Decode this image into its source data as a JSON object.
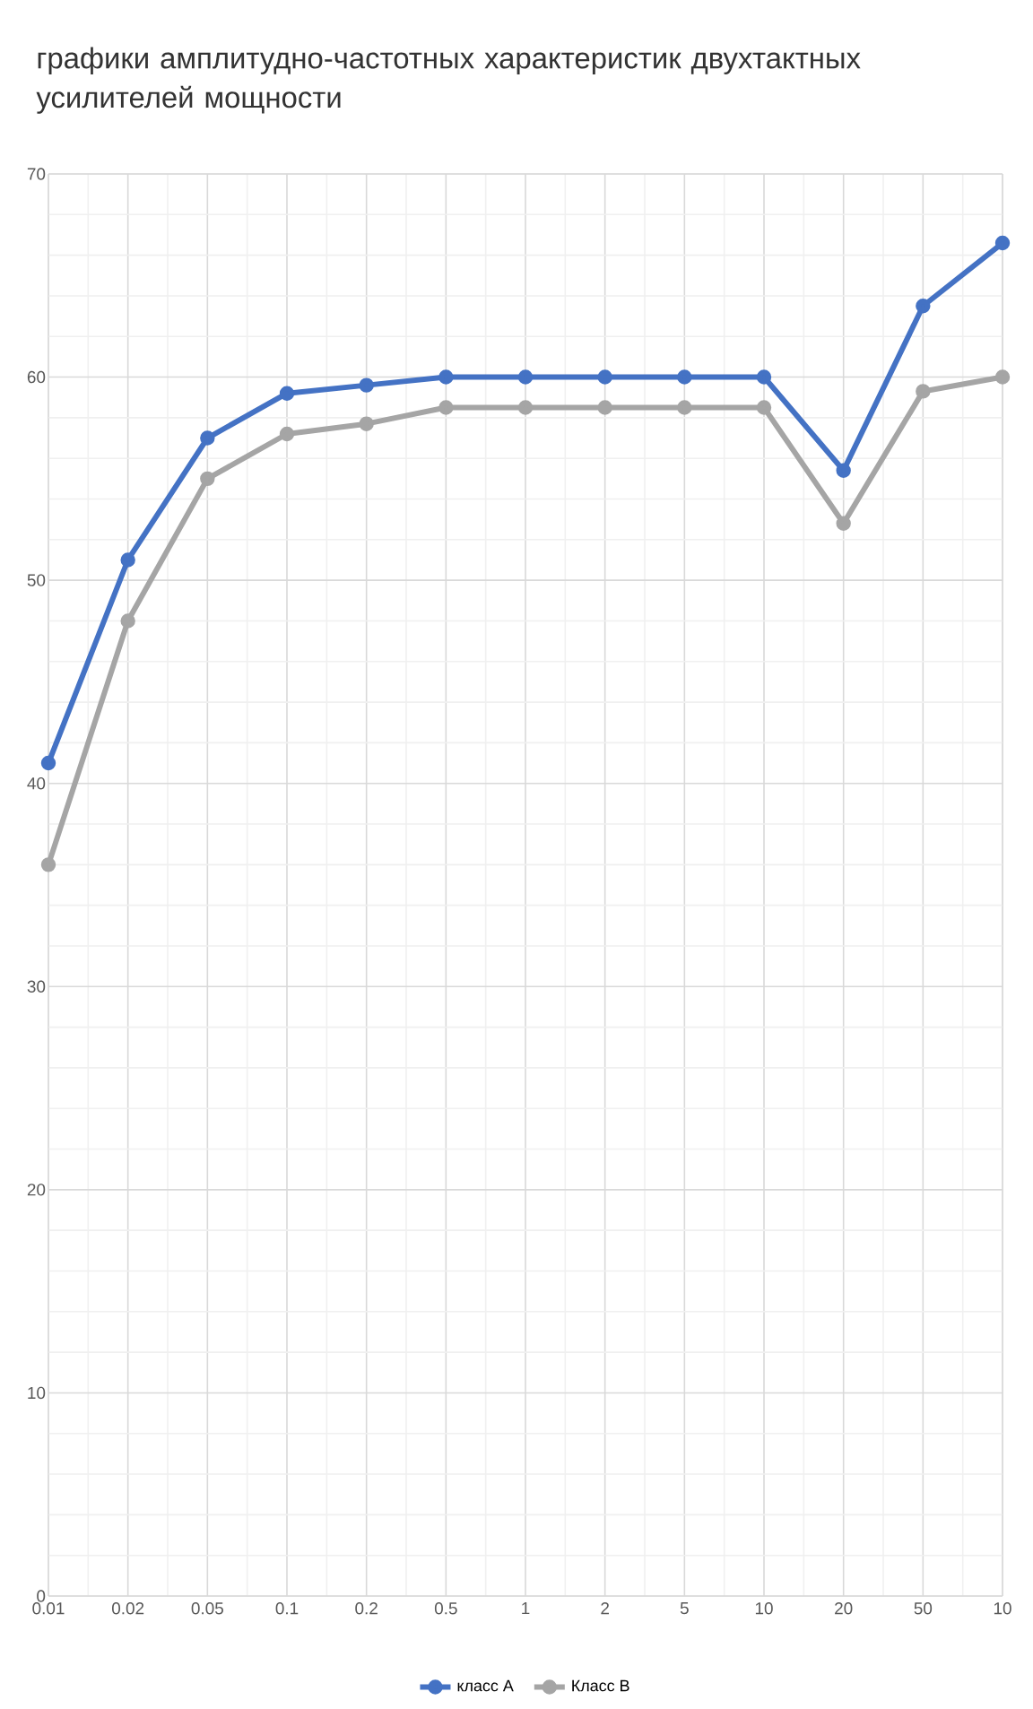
{
  "chart_data": {
    "type": "line",
    "title": "графики амплитудно-частотных характеристик двухтактных усилителей мощности",
    "categories": [
      "0.01",
      "0.02",
      "0.05",
      "0.1",
      "0.2",
      "0.5",
      "1",
      "2",
      "5",
      "10",
      "20",
      "50",
      "10"
    ],
    "series": [
      {
        "name": "класс А",
        "color": "#4472c4",
        "values": [
          41,
          51,
          57,
          59.2,
          59.6,
          60,
          60,
          60,
          60,
          60,
          55.4,
          63.5,
          66.6
        ]
      },
      {
        "name": "Класс В",
        "color": "#a5a5a5",
        "values": [
          36,
          48,
          55,
          57.2,
          57.7,
          58.5,
          58.5,
          58.5,
          58.5,
          58.5,
          52.8,
          59.3,
          60
        ]
      }
    ],
    "ylim": [
      0,
      70
    ],
    "yticks": [
      0,
      10,
      20,
      30,
      40,
      50,
      60,
      70
    ],
    "grid": true,
    "legend": "bottom",
    "marker": "circle"
  }
}
